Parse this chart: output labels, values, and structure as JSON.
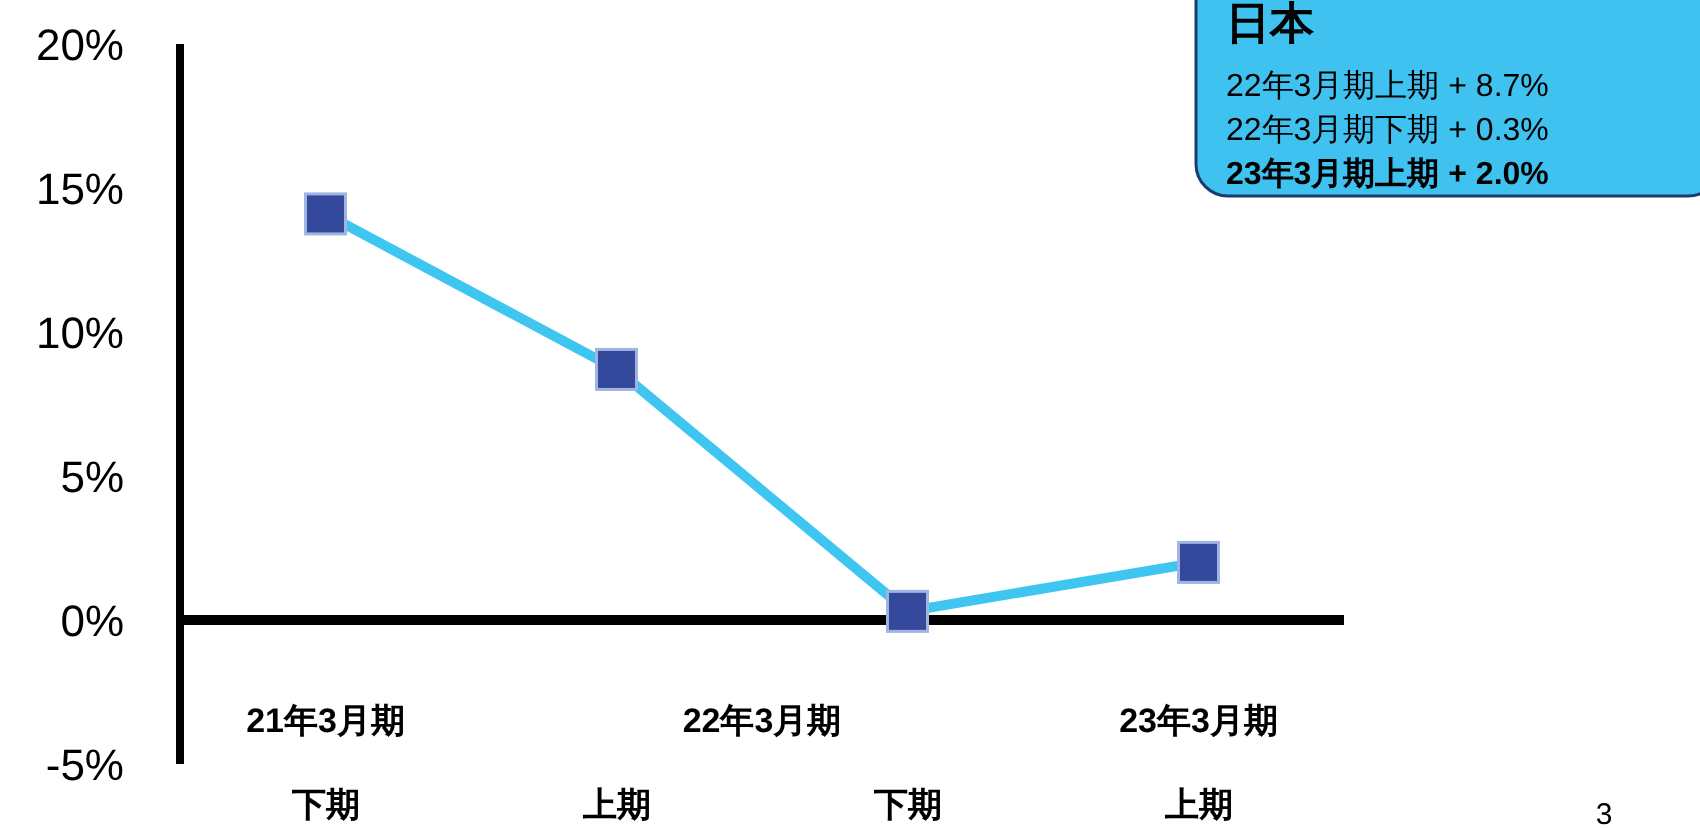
{
  "chart_data": {
    "type": "line",
    "categories": [
      "下期",
      "上期",
      "下期",
      "上期"
    ],
    "series": [
      {
        "color": "#3ec6f0",
        "colors": [
          "#34489c",
          "#34489c",
          "#34489c",
          "#34489c"
        ],
        "values": [
          14.1,
          8.7,
          0.3,
          2.0
        ]
      }
    ],
    "ylim": [
      -5,
      20
    ],
    "yticks": [
      {
        "value": -5,
        "label": "-5%"
      },
      {
        "value": 0,
        "label": "0%"
      },
      {
        "value": 5,
        "label": "5%"
      },
      {
        "value": 10,
        "label": "10%"
      },
      {
        "value": 15,
        "label": "15%"
      },
      {
        "value": 20,
        "label": "20%"
      }
    ],
    "marker": "square",
    "line_style": "solid",
    "annotations": [
      "21年3月期",
      "22年3月期",
      "23年3月期",
      "日本",
      "22年3月期上期 + 8.7%",
      "22年3月期下期 + 0.3%",
      "23年3月期上期 + 2.0%",
      "3"
    ]
  }
}
